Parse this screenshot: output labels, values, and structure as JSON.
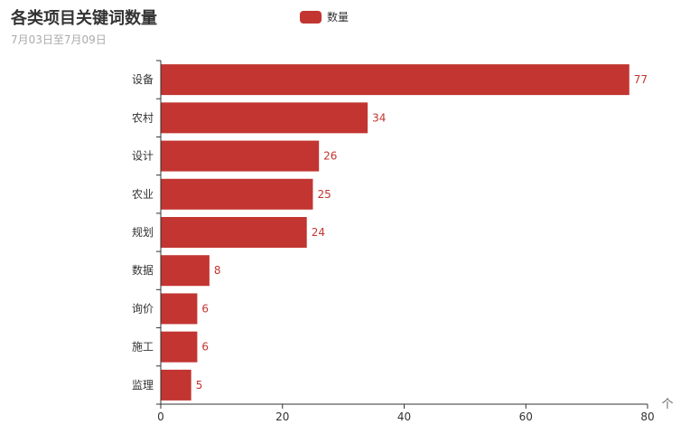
{
  "title": "各类项目关键词数量",
  "subtitle": "7月03日至7月09日",
  "legend": {
    "label": "数量",
    "color": "#c23531"
  },
  "corner_icon": "up-caret-icon",
  "corner_glyph": "个",
  "chart_data": {
    "type": "bar",
    "orientation": "horizontal",
    "categories": [
      "设备",
      "农村",
      "设计",
      "农业",
      "规划",
      "数据",
      "询价",
      "施工",
      "监理"
    ],
    "series": [
      {
        "name": "数量",
        "values": [
          77,
          34,
          26,
          25,
          24,
          8,
          6,
          6,
          5
        ],
        "color": "#c23531"
      }
    ],
    "xlim": [
      0,
      80
    ],
    "xticks": [
      0,
      20,
      40,
      60,
      80
    ],
    "grid": false,
    "legend_position": "top-center",
    "data_labels": true
  }
}
